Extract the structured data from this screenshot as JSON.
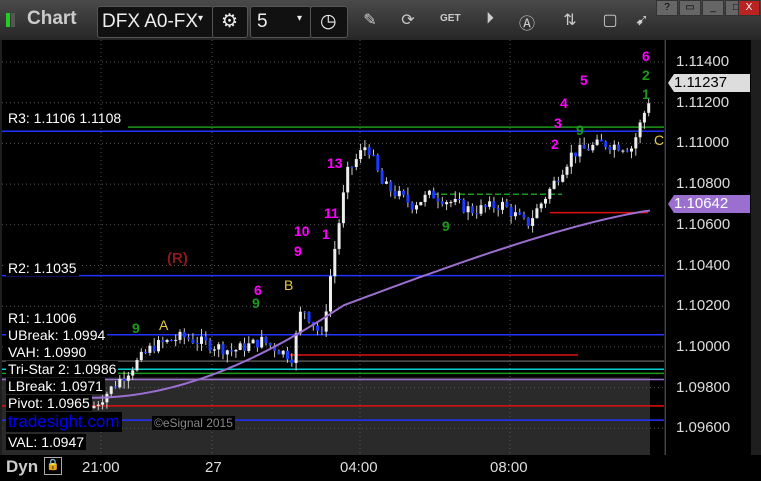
{
  "window": {
    "title": "Chart",
    "symbol": "DFX A0-FX",
    "interval": "5",
    "buttons": [
      "?",
      "restore",
      "minimize",
      "maximize",
      "X"
    ]
  },
  "toolbar_icons": [
    "gear-icon",
    "clock-icon",
    "pencil-icon",
    "refresh-chart-icon",
    "get-icon",
    "play-icon",
    "a-circle-icon",
    "swap-icon",
    "comment-icon",
    "bird-icon"
  ],
  "axis": {
    "ticks": [
      "1.11400",
      "1.11200",
      "1.11000",
      "1.10800",
      "1.10600",
      "1.10400",
      "1.10200",
      "1.10000",
      "1.09800",
      "1.09600"
    ],
    "last_price": "1.11237",
    "vwap_price": "1.10642",
    "last_color": "#dddddd",
    "vwap_color": "#9b6fd0"
  },
  "time_labels": [
    "21:00",
    "27",
    "04:00",
    "08:00"
  ],
  "bottom": {
    "label": "Dyn"
  },
  "levels": {
    "r3": "R3: 1.1106",
    "r3b": "1.1108",
    "r2": "R2: 1.1035",
    "r1": "R1: 1.1006",
    "ubreak": "UBreak: 1.0994",
    "vah": "VAH: 1.0990",
    "tristar": "Tri-Star 2: 1.0986",
    "lbreak": "LBreak: 1.0971",
    "pivot": "Pivot: 1.0965",
    "val": "VAL: 1.0947"
  },
  "watermark": "tradesight.com",
  "copyright": "©eSignal 2015",
  "markers": {
    "r": "(R)",
    "a": "A",
    "b": "B",
    "c": "C"
  },
  "count_labels": [
    "6",
    "9",
    "10",
    "11",
    "13",
    "1",
    "2",
    "3",
    "4",
    "5",
    "6",
    "1",
    "2",
    "9",
    "9",
    "9",
    "9"
  ]
}
